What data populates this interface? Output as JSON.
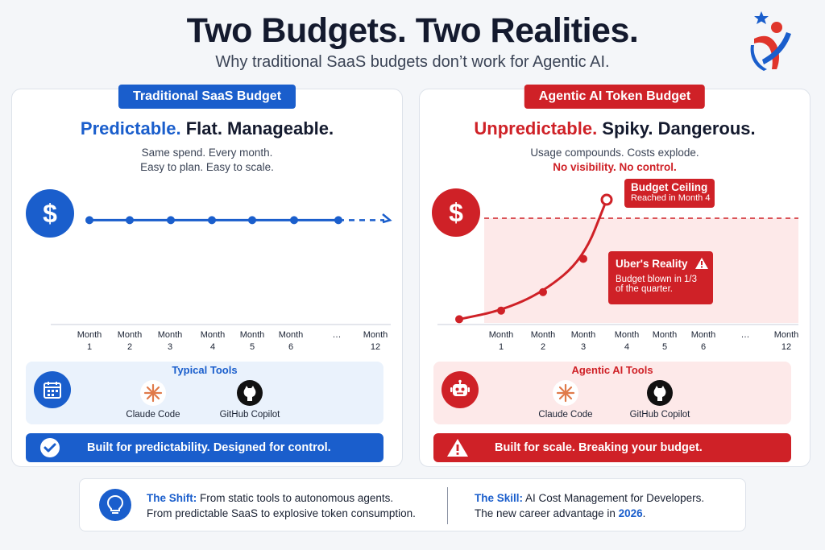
{
  "title": "Two Budgets. Two Realities.",
  "subtitle": "Why traditional SaaS budgets don’t work for Agentic AI.",
  "logo_icon": "person-star-logo",
  "colors": {
    "blue": "#1a5ecc",
    "red": "#cf2127",
    "blue_soft": "#eaf2fc",
    "red_soft": "#fde9e9"
  },
  "left": {
    "heading": "Traditional SaaS Budget",
    "headline_accent": "Predictable.",
    "headline_rest": " Flat. Manageable.",
    "desc_line1": "Same spend. Every month.",
    "desc_line2": "Easy to plan. Easy to scale.",
    "tools_title": "Typical Tools",
    "tools_icon": "calendar-icon",
    "tools": [
      {
        "label": "Claude Code",
        "icon": "claude-icon"
      },
      {
        "label": "GitHub Copilot",
        "icon": "github-icon"
      }
    ],
    "banner_icon": "check-circle-icon",
    "banner": "Built for predictability.  Designed for control."
  },
  "right": {
    "heading": "Agentic AI Token Budget",
    "headline_accent": "Unpredictable.",
    "headline_rest": " Spiky. Dangerous.",
    "desc_line1": "Usage compounds. Costs explode.",
    "desc_line2": "No visibility. No control.",
    "callout_ceiling_title": "Budget Ceiling",
    "callout_ceiling_sub": "Reached in Month 4",
    "callout_reality_title": "Uber's Reality",
    "callout_reality_sub1": "Budget blown in 1/3",
    "callout_reality_sub2": "of the quarter.",
    "tools_title": "Agentic AI Tools",
    "tools_icon": "robot-icon",
    "tools": [
      {
        "label": "Claude Code",
        "icon": "claude-icon"
      },
      {
        "label": "GitHub Copilot",
        "icon": "github-icon"
      }
    ],
    "banner_icon": "warning-icon",
    "banner": "Built for scale. Breaking your budget."
  },
  "chart_data": [
    {
      "type": "line",
      "title": "",
      "symbol": "$",
      "x_labels": [
        [
          "Month",
          "1"
        ],
        [
          "Month",
          "2"
        ],
        [
          "Month",
          "3"
        ],
        [
          "Month",
          "4"
        ],
        [
          "Month",
          "5"
        ],
        [
          "Month",
          "6"
        ],
        [
          "…",
          ""
        ],
        [
          "Month",
          "12"
        ]
      ],
      "values": [
        0.8,
        0.8,
        0.8,
        0.8,
        0.8,
        0.8,
        0.8
      ],
      "trend": "flat",
      "continues": true
    },
    {
      "type": "line",
      "title": "",
      "symbol": "$",
      "x_labels": [
        [
          "",
          ""
        ],
        [
          "Month",
          "1"
        ],
        [
          "Month",
          "2"
        ],
        [
          "Month",
          "3"
        ],
        [
          "Month",
          "4"
        ],
        [
          "Month",
          "5"
        ],
        [
          "Month",
          "6"
        ],
        [
          "…",
          ""
        ],
        [
          "Month",
          "12"
        ]
      ],
      "values": [
        0.03,
        0.1,
        0.25,
        0.52,
        1.0
      ],
      "ceiling": 0.85,
      "trend": "exponential"
    }
  ],
  "footer": {
    "shift_label": "The Shift:",
    "shift_line1": " From static tools to autonomous agents.",
    "shift_line2": "From predictable SaaS to explosive token consumption.",
    "skill_label": "The Skill:",
    "skill_line1": " AI Cost Management for Developers.",
    "skill_line2_pre": "The new career advantage in ",
    "skill_year": "2026",
    "skill_line2_post": ".",
    "icon": "lightbulb-icon"
  }
}
